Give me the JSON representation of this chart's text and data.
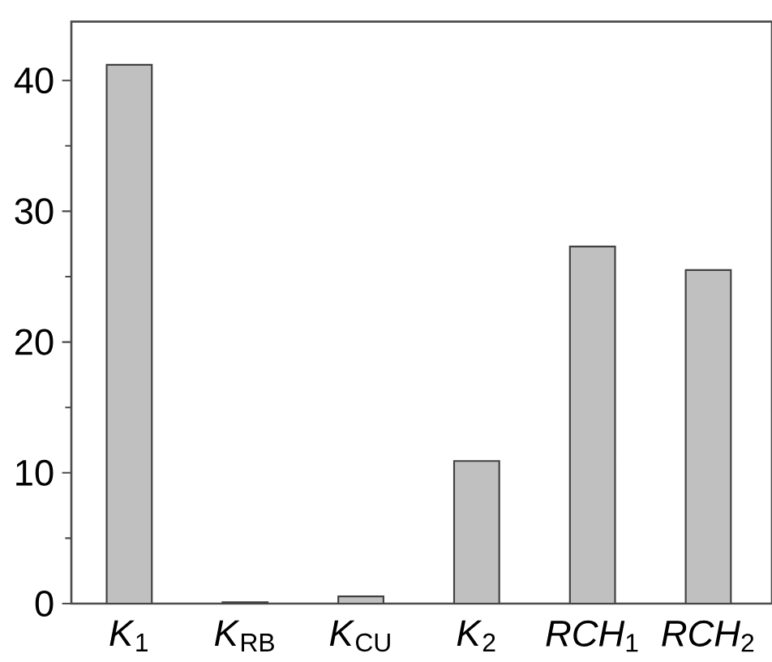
{
  "chart_data": {
    "type": "bar",
    "categories": [
      "*K*$_{1}$",
      "*K*$_{RB}$",
      "*K*$_{CU}$",
      "*K*$_{2}$",
      "*RCH*$_{1}$",
      "*RCH*$_{2}$"
    ],
    "values": [
      41.2,
      0.1,
      0.55,
      10.9,
      27.3,
      25.5
    ],
    "color": "#c0c0c0",
    "ylim": [
      0,
      44.5
    ],
    "yticks": [
      0,
      10,
      20,
      30,
      40
    ],
    "grid": false
  }
}
